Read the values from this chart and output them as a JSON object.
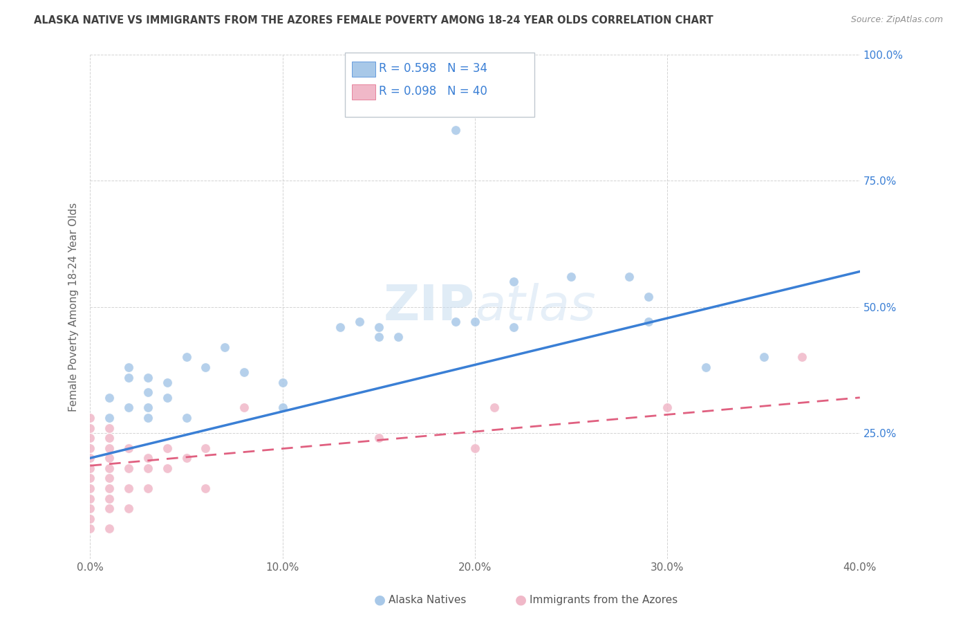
{
  "title": "ALASKA NATIVE VS IMMIGRANTS FROM THE AZORES FEMALE POVERTY AMONG 18-24 YEAR OLDS CORRELATION CHART",
  "source": "Source: ZipAtlas.com",
  "ylabel": "Female Poverty Among 18-24 Year Olds",
  "xlim": [
    0.0,
    0.4
  ],
  "ylim": [
    0.0,
    1.0
  ],
  "xtick_vals": [
    0.0,
    0.1,
    0.2,
    0.3,
    0.4
  ],
  "ytick_vals": [
    0.0,
    0.25,
    0.5,
    0.75,
    1.0
  ],
  "right_ytick_labels": [
    "25.0%",
    "50.0%",
    "75.0%",
    "100.0%"
  ],
  "right_ytick_vals": [
    0.25,
    0.5,
    0.75,
    1.0
  ],
  "legend_blue_r": "0.598",
  "legend_blue_n": "34",
  "legend_pink_r": "0.098",
  "legend_pink_n": "40",
  "watermark": "ZIPatlas",
  "blue_scatter": [
    [
      0.01,
      0.32
    ],
    [
      0.01,
      0.28
    ],
    [
      0.02,
      0.36
    ],
    [
      0.02,
      0.3
    ],
    [
      0.02,
      0.38
    ],
    [
      0.03,
      0.33
    ],
    [
      0.03,
      0.3
    ],
    [
      0.03,
      0.28
    ],
    [
      0.03,
      0.36
    ],
    [
      0.04,
      0.35
    ],
    [
      0.04,
      0.32
    ],
    [
      0.05,
      0.28
    ],
    [
      0.05,
      0.4
    ],
    [
      0.06,
      0.38
    ],
    [
      0.07,
      0.42
    ],
    [
      0.08,
      0.37
    ],
    [
      0.1,
      0.3
    ],
    [
      0.1,
      0.35
    ],
    [
      0.13,
      0.46
    ],
    [
      0.14,
      0.47
    ],
    [
      0.15,
      0.46
    ],
    [
      0.15,
      0.44
    ],
    [
      0.16,
      0.44
    ],
    [
      0.19,
      0.47
    ],
    [
      0.2,
      0.47
    ],
    [
      0.22,
      0.46
    ],
    [
      0.22,
      0.55
    ],
    [
      0.25,
      0.56
    ],
    [
      0.28,
      0.56
    ],
    [
      0.29,
      0.52
    ],
    [
      0.29,
      0.47
    ],
    [
      0.32,
      0.38
    ],
    [
      0.35,
      0.4
    ],
    [
      0.19,
      0.85
    ]
  ],
  "pink_scatter": [
    [
      0.0,
      0.28
    ],
    [
      0.0,
      0.26
    ],
    [
      0.0,
      0.24
    ],
    [
      0.0,
      0.22
    ],
    [
      0.0,
      0.2
    ],
    [
      0.0,
      0.18
    ],
    [
      0.0,
      0.16
    ],
    [
      0.0,
      0.14
    ],
    [
      0.0,
      0.12
    ],
    [
      0.0,
      0.1
    ],
    [
      0.0,
      0.08
    ],
    [
      0.0,
      0.06
    ],
    [
      0.01,
      0.26
    ],
    [
      0.01,
      0.24
    ],
    [
      0.01,
      0.22
    ],
    [
      0.01,
      0.2
    ],
    [
      0.01,
      0.18
    ],
    [
      0.01,
      0.16
    ],
    [
      0.01,
      0.14
    ],
    [
      0.01,
      0.12
    ],
    [
      0.01,
      0.1
    ],
    [
      0.01,
      0.06
    ],
    [
      0.02,
      0.22
    ],
    [
      0.02,
      0.18
    ],
    [
      0.02,
      0.14
    ],
    [
      0.02,
      0.1
    ],
    [
      0.03,
      0.2
    ],
    [
      0.03,
      0.18
    ],
    [
      0.03,
      0.14
    ],
    [
      0.04,
      0.22
    ],
    [
      0.04,
      0.18
    ],
    [
      0.05,
      0.2
    ],
    [
      0.06,
      0.14
    ],
    [
      0.06,
      0.22
    ],
    [
      0.08,
      0.3
    ],
    [
      0.15,
      0.24
    ],
    [
      0.2,
      0.22
    ],
    [
      0.21,
      0.3
    ],
    [
      0.3,
      0.3
    ],
    [
      0.37,
      0.4
    ]
  ],
  "blue_line": [
    0.0,
    0.2,
    0.4,
    0.57
  ],
  "pink_line": [
    0.0,
    0.185,
    0.4,
    0.32
  ],
  "blue_color": "#a8c8e8",
  "pink_color": "#f0b8c8",
  "blue_line_color": "#3a7fd5",
  "pink_line_color": "#e06080",
  "pink_line_dash": [
    6,
    4
  ],
  "grid_color": "#c8c8c8",
  "background_color": "#ffffff",
  "title_color": "#404040",
  "source_color": "#909090",
  "legend_text_color": "#3a7fd5",
  "legend_border_color": "#c0c8d0"
}
